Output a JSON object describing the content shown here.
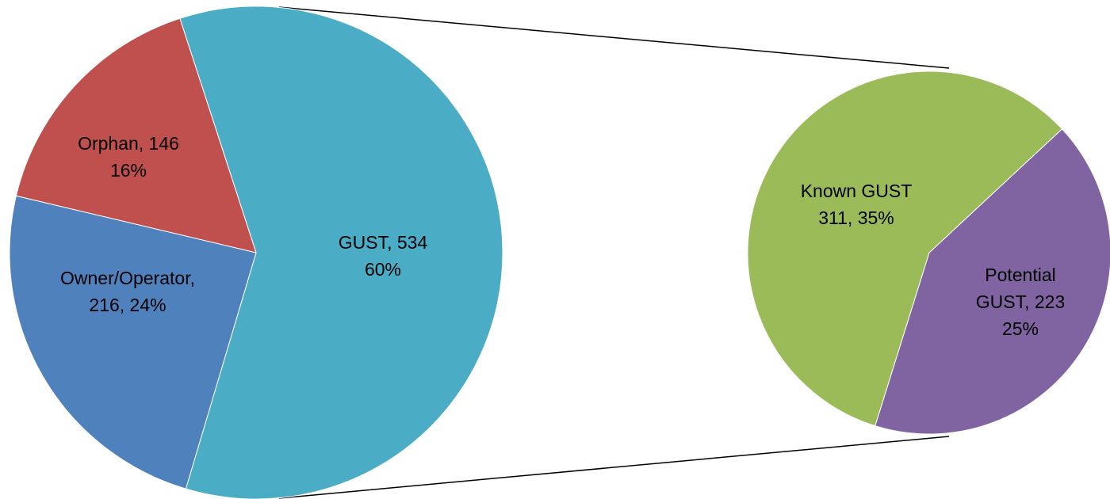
{
  "chart_data": [
    {
      "type": "pie",
      "values": [
        534,
        216,
        146
      ],
      "value_labels": [
        [
          "GUST, 534",
          "60%"
        ],
        [
          "Owner/Operator,",
          "216, 24%"
        ],
        [
          "Orphan, 146",
          "16%"
        ]
      ],
      "colors": [
        "#4BACC6",
        "#4F81BD",
        "#C0504D"
      ]
    },
    {
      "type": "pie",
      "values": [
        223,
        311
      ],
      "value_labels": [
        [
          "Potential",
          "GUST, 223",
          "25%"
        ],
        [
          "Known GUST",
          "311, 35%"
        ]
      ],
      "colors": [
        "#8064A2",
        "#9BBB59"
      ]
    }
  ]
}
